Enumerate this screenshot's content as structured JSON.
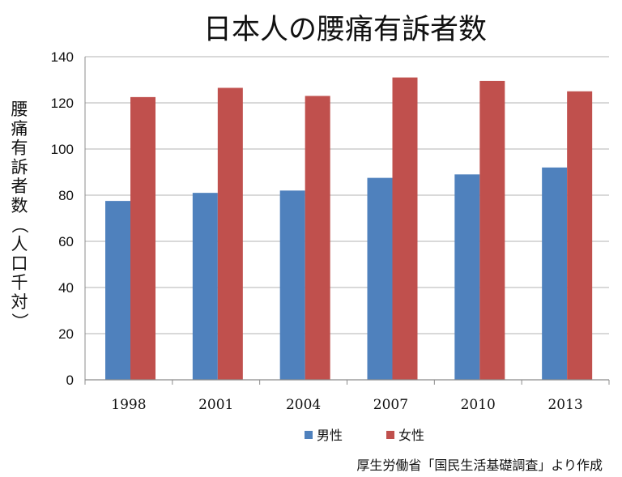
{
  "chart_data": {
    "type": "bar",
    "title": "日本人の腰痛有訴者数",
    "ylabel": "腰痛有訴者数（人口千対）",
    "xlabel": "",
    "categories": [
      "1998",
      "2001",
      "2004",
      "2007",
      "2010",
      "2013"
    ],
    "series": [
      {
        "name": "男性",
        "color": "#4f81bd",
        "values": [
          77.5,
          81.0,
          82.0,
          87.5,
          89.0,
          92.0
        ]
      },
      {
        "name": "女性",
        "color": "#c0504d",
        "values": [
          122.5,
          126.5,
          123.0,
          131.0,
          129.5,
          125.0
        ]
      }
    ],
    "ylim": [
      0,
      140
    ],
    "yticks": [
      "0",
      "20",
      "40",
      "60",
      "80",
      "100",
      "120",
      "140"
    ],
    "grid": true,
    "legend_position": "bottom"
  },
  "source_note": "厚生労働省「国民生活基礎調査」より作成"
}
